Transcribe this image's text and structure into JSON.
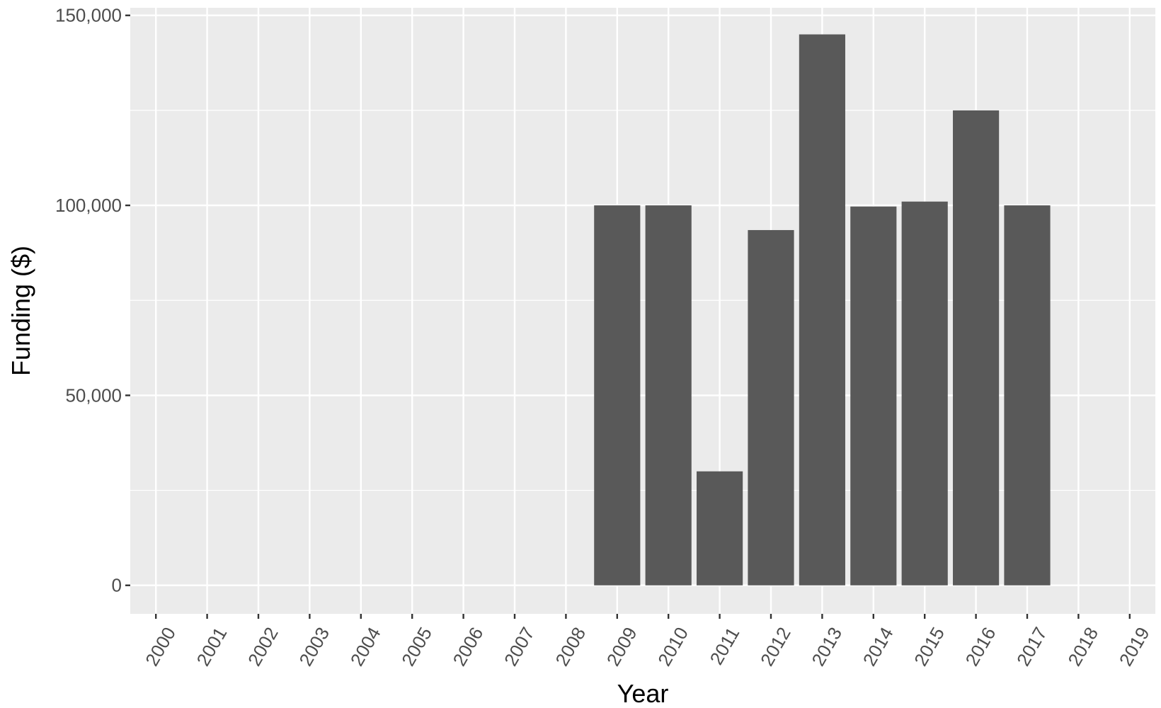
{
  "chart_data": {
    "type": "bar",
    "categories": [
      "2000",
      "2001",
      "2002",
      "2003",
      "2004",
      "2005",
      "2006",
      "2007",
      "2008",
      "2009",
      "2010",
      "2011",
      "2012",
      "2013",
      "2014",
      "2015",
      "2016",
      "2017",
      "2018",
      "2019"
    ],
    "values": [
      0,
      0,
      0,
      0,
      0,
      0,
      0,
      0,
      0,
      100000,
      100000,
      30000,
      93500,
      145000,
      99700,
      101000,
      125000,
      100000,
      0,
      0
    ],
    "title": "",
    "xlabel": "Year",
    "ylabel": "Funding ($)",
    "ylim": [
      -7500,
      152000
    ],
    "yticks": [
      0,
      50000,
      100000,
      150000
    ],
    "ytick_labels": [
      "0",
      "50,000",
      "100,000",
      "150,000"
    ],
    "grid": true,
    "colors": {
      "bar": "#595959",
      "panel": "#ebebeb",
      "grid": "#ffffff"
    }
  }
}
